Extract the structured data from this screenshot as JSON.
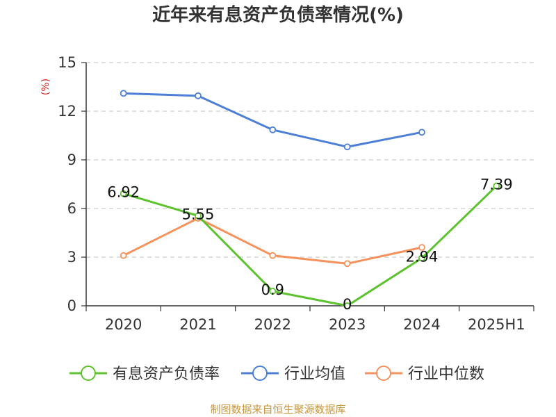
{
  "chart_data": {
    "type": "line",
    "title": "近年来有息资产负债率情况(%)",
    "ylabel": "(%)",
    "categories": [
      "2020",
      "2021",
      "2022",
      "2023",
      "2024",
      "2025H1"
    ],
    "ylim": [
      0,
      15
    ],
    "yticks": [
      0,
      3,
      6,
      9,
      12,
      15
    ],
    "grid": true,
    "legend_position": "bottom",
    "series": [
      {
        "name": "有息资产负债率",
        "color": "#5cc22e",
        "values": [
          6.92,
          5.55,
          0.9,
          0,
          2.94,
          7.39
        ],
        "labels": [
          "6.92",
          "5.55",
          "0.9",
          "0",
          "2.94",
          "7.39"
        ]
      },
      {
        "name": "行业均值",
        "color": "#4d7fd6",
        "values": [
          13.1,
          12.95,
          10.85,
          9.8,
          10.7,
          null
        ]
      },
      {
        "name": "行业中位数",
        "color": "#f5915c",
        "values": [
          3.1,
          5.4,
          3.1,
          2.6,
          3.6,
          null
        ]
      }
    ]
  },
  "source": "制图数据来自恒生聚源数据库"
}
